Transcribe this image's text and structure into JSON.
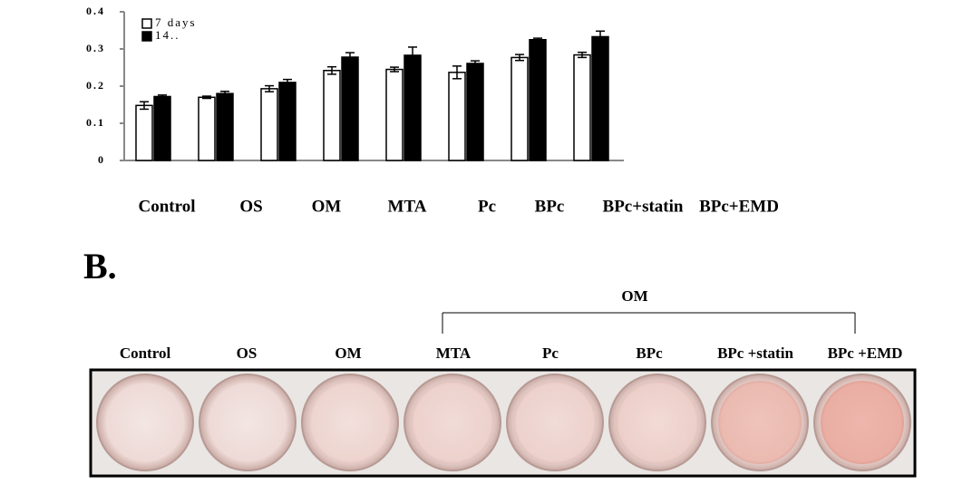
{
  "chart_data": {
    "type": "bar",
    "categories": [
      "Control",
      "OS",
      "OM",
      "MTA",
      "Pc",
      "BPc",
      "BPc+statin",
      "BPc+EMD"
    ],
    "series": [
      {
        "name": "7 days",
        "color": "#ffffff",
        "values": [
          0.148,
          0.17,
          0.193,
          0.242,
          0.245,
          0.237,
          0.277,
          0.284
        ],
        "errors": [
          0.01,
          0.003,
          0.008,
          0.01,
          0.006,
          0.017,
          0.008,
          0.007
        ]
      },
      {
        "name": "14..",
        "color": "#000000",
        "values": [
          0.172,
          0.18,
          0.21,
          0.278,
          0.283,
          0.261,
          0.325,
          0.333
        ],
        "errors": [
          0.004,
          0.006,
          0.008,
          0.012,
          0.022,
          0.007,
          0.004,
          0.015
        ]
      }
    ],
    "ylim": [
      0,
      0.4
    ],
    "yticks": [
      0,
      0.1,
      0.2,
      0.3,
      0.4
    ],
    "legend": "top-left"
  },
  "panel_b": {
    "label": "B.",
    "bracket_label": "OM",
    "columns": [
      "Control",
      "OS",
      "OM",
      "MTA",
      "Pc",
      "BPc",
      "BPc +statin",
      "BPc +EMD"
    ]
  }
}
